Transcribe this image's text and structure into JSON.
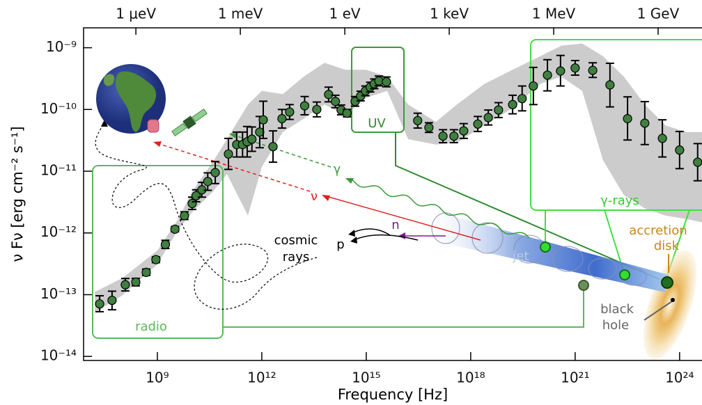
{
  "chart_data": {
    "type": "errorbar-scatter",
    "x_label": "Frequency [Hz]",
    "y_label": "ν Fν [erg cm⁻² s⁻¹]",
    "log_x": true,
    "log_y": true,
    "xlim": [
      7600000.0,
      4.4e+24
    ],
    "ylim": [
      8.6e-15,
      2.1e-09
    ],
    "xticks": [
      {
        "value": 1000000000.0,
        "label": "10⁹"
      },
      {
        "value": 1000000000000.0,
        "label": "10¹²"
      },
      {
        "value": 1000000000000000.0,
        "label": "10¹⁵"
      },
      {
        "value": 1e+18,
        "label": "10¹⁸"
      },
      {
        "value": 1e+21,
        "label": "10²¹"
      },
      {
        "value": 1e+24,
        "label": "10²⁴"
      }
    ],
    "x2ticks": [
      {
        "value": 241800000.0,
        "label": "1 μeV"
      },
      {
        "value": 241800000000.0,
        "label": "1 meV"
      },
      {
        "value": 241800000000000.0,
        "label": "1 eV"
      },
      {
        "value": 2.418e+17,
        "label": "1 keV"
      },
      {
        "value": 2.418e+20,
        "label": "1 MeV"
      },
      {
        "value": 2.418e+23,
        "label": "1 GeV"
      }
    ],
    "yticks": [
      {
        "value": 1e-14,
        "label": "10⁻¹⁴"
      },
      {
        "value": 1e-13,
        "label": "10⁻¹³"
      },
      {
        "value": 1e-12,
        "label": "10⁻¹²"
      },
      {
        "value": 1e-11,
        "label": "10⁻¹¹"
      },
      {
        "value": 1e-10,
        "label": "10⁻¹⁰"
      },
      {
        "value": 1e-09,
        "label": "10⁻⁹"
      }
    ],
    "color": "#3f7f3f",
    "band_color": "#cccccc",
    "x": [
      22000000.0,
      50000000.0,
      120000000.0,
      240000000.0,
      480000000.0,
      910000000.0,
      1700000000.0,
      3200000000.0,
      6000000000.0,
      10000000000.0,
      13000000000.0,
      19000000000.0,
      28000000000.0,
      46000000000.0,
      110000000000.0,
      190000000000.0,
      280000000000.0,
      380000000000.0,
      520000000000.0,
      870000000000.0,
      1100000000000.0,
      2100000000000.0,
      3800000000000.0,
      6300000000000.0,
      17000000000000.0,
      38000000000000.0,
      83000000000000.0,
      130000000000000.0,
      190000000000000.0,
      280000000000000.0,
      480000000000000.0,
      690000000000000.0,
      950000000000000.0,
      1300000000000000.0,
      1700000000000000.0,
      2300000000000000.0,
      3800000000000000.0,
      3e+16,
      6.3e+16,
      1.6e+17,
      3.3e+17,
      6.3e+17,
      1.6e+18,
      3.2e+18,
      6.3e+18,
      1.6e+19,
      3e+19,
      6.3e+19,
      1.6e+20,
      3.8e+20,
      1e+21,
      3.2e+21,
      1e+22,
      3.2e+22,
      1e+23,
      3.2e+23,
      1e+24,
      3.3e+24
    ],
    "values": [
      7.1e-14,
      8.1e-14,
      1.45e-13,
      1.6e-13,
      2.3e-13,
      3.7e-13,
      6.5e-13,
      1.15e-12,
      1.9e-12,
      3e-12,
      4e-12,
      5e-12,
      6.8e-12,
      9.5e-12,
      1.9e-11,
      2.7e-11,
      2.7e-11,
      3e-11,
      3.3e-11,
      4.3e-11,
      6.8e-11,
      2.5e-11,
      7.1e-11,
      9.1e-11,
      1.15e-10,
      1e-10,
      1.75e-10,
      1.35e-10,
      9.8e-11,
      8.7e-11,
      1.35e-10,
      1.65e-10,
      2e-10,
      2.3e-10,
      2.6e-10,
      2.9e-10,
      2.8e-10,
      6.6e-11,
      5.1e-11,
      3.7e-11,
      3.7e-11,
      4.5e-11,
      5.8e-11,
      7.4e-11,
      9.8e-11,
      1.2e-10,
      1.5e-10,
      2.4e-10,
      3.6e-10,
      4.2e-10,
      4.7e-10,
      4.3e-10,
      2.5e-10,
      7.1e-11,
      6e-11,
      3.4e-11,
      2.2e-11,
      1.4e-11
    ],
    "lower": [
      5.3e-14,
      5.7e-14,
      1.15e-13,
      1.39e-13,
      2.05e-13,
      3.3e-13,
      5.6e-13,
      1.05e-12,
      1.65e-12,
      2.4e-12,
      3.2e-12,
      3.8e-12,
      4.9e-12,
      6.3e-12,
      1.07e-11,
      1.7e-11,
      1.7e-11,
      1.7e-11,
      2.1e-11,
      2.4e-11,
      3.4e-11,
      1.4e-11,
      5e-11,
      6.9e-11,
      8.2e-11,
      7.6e-11,
      1.33e-10,
      1.07e-10,
      8.2e-11,
      7.6e-11,
      1.13e-10,
      1.38e-10,
      1.67e-10,
      1.92e-10,
      2.17e-10,
      2.42e-10,
      2.33e-10,
      5e-11,
      4.25e-11,
      2.9e-11,
      2.9e-11,
      3.4e-11,
      4.4e-11,
      5.6e-11,
      7.4e-11,
      8.5e-11,
      9.5e-11,
      1.2e-10,
      2e-10,
      2.4e-10,
      3.6e-10,
      3.3e-10,
      1.1e-10,
      3.2e-11,
      2.7e-11,
      1.7e-11,
      1.1e-11,
      7e-12
    ],
    "upper": [
      9.6e-14,
      1.14e-13,
      1.83e-13,
      1.84e-13,
      2.6e-13,
      4.1e-13,
      7.6e-13,
      1.27e-12,
      2.2e-12,
      3.8e-12,
      5e-12,
      6.6e-12,
      9.4e-12,
      1.43e-11,
      3.4e-11,
      4.3e-11,
      4.3e-11,
      5.3e-11,
      5.2e-11,
      7.7e-11,
      1.36e-10,
      4.5e-11,
      1e-10,
      1.2e-10,
      1.62e-10,
      1.32e-10,
      2.3e-10,
      1.7e-10,
      1.18e-10,
      1e-10,
      1.62e-10,
      1.98e-10,
      2.4e-10,
      2.76e-10,
      3.12e-10,
      3.48e-10,
      3.36e-10,
      8.7e-11,
      6.1e-11,
      4.7e-11,
      4.7e-11,
      5.9e-11,
      7.7e-11,
      9.8e-11,
      1.29e-10,
      1.7e-10,
      2.4e-10,
      4.8e-10,
      6.4e-10,
      7.5e-10,
      6.2e-10,
      5.7e-10,
      5.6e-10,
      1.6e-10,
      1.34e-10,
      6.8e-11,
      4.4e-11,
      2.8e-11
    ],
    "band": {
      "x": [
        16000000.0,
        100000000.0,
        1000000000.0,
        4000000000.0,
        10000000000.0,
        40000000000.0,
        100000000000.0,
        400000000000.0,
        1000000000000.0,
        4000000000000.0,
        16000000000000.0,
        63000000000000.0,
        250000000000000.0,
        1000000000000000.0,
        4000000000000000.0,
        1.6e+16,
        1e+17,
        4e+17,
        2.5e+18,
        1.6e+19,
        1e+20,
        4e+20,
        1.6e+21,
        6.3e+21,
        2.5e+22,
        1e+23,
        4e+23,
        1.6e+24,
        4.4e+24
      ],
      "upper": [
        1.11e-13,
        1.86e-13,
        5.2e-13,
        1.68e-12,
        4.7e-12,
        1.44e-11,
        3.3e-11,
        1.2e-10,
        2e-10,
        1.77e-10,
        3.4e-10,
        5.7e-10,
        4.4e-10,
        4.4e-10,
        3.4e-10,
        1.2e-10,
        6.3e-11,
        1.2e-10,
        2.6e-10,
        4.4e-10,
        7.3e-10,
        1.08e-09,
        1.17e-09,
        7.3e-10,
        3.4e-10,
        1.2e-10,
        5.5e-11,
        4.3e-11,
        4.3e-11
      ],
      "lower": [
        5.1e-14,
        9.8e-14,
        3.1e-13,
        1.14e-12,
        2.17e-12,
        4.7e-12,
        9e-12,
        1.91e-12,
        1.17e-11,
        4.3e-11,
        7.1e-11,
        1.2e-10,
        8.1e-11,
        1.55e-10,
        2e-10,
        3.3e-11,
        2.7e-11,
        2.9e-11,
        5.5e-11,
        1.05e-10,
        2.6e-10,
        3.4e-10,
        2e-10,
        1.51e-11,
        4.1e-12,
        2.5e-12,
        1.91e-12,
        1.68e-12,
        1.48e-12
      ]
    },
    "annotations": {
      "radio": "radio",
      "uv": "UV",
      "gamma_rays": "γ-rays",
      "cosmic": "cosmic",
      "rays": "rays",
      "p": "p",
      "n": "n",
      "nu": "ν",
      "gamma": "γ",
      "jet": "jet",
      "accretion": "accretion",
      "disk": "disk",
      "black": "black",
      "hole": "hole"
    }
  }
}
